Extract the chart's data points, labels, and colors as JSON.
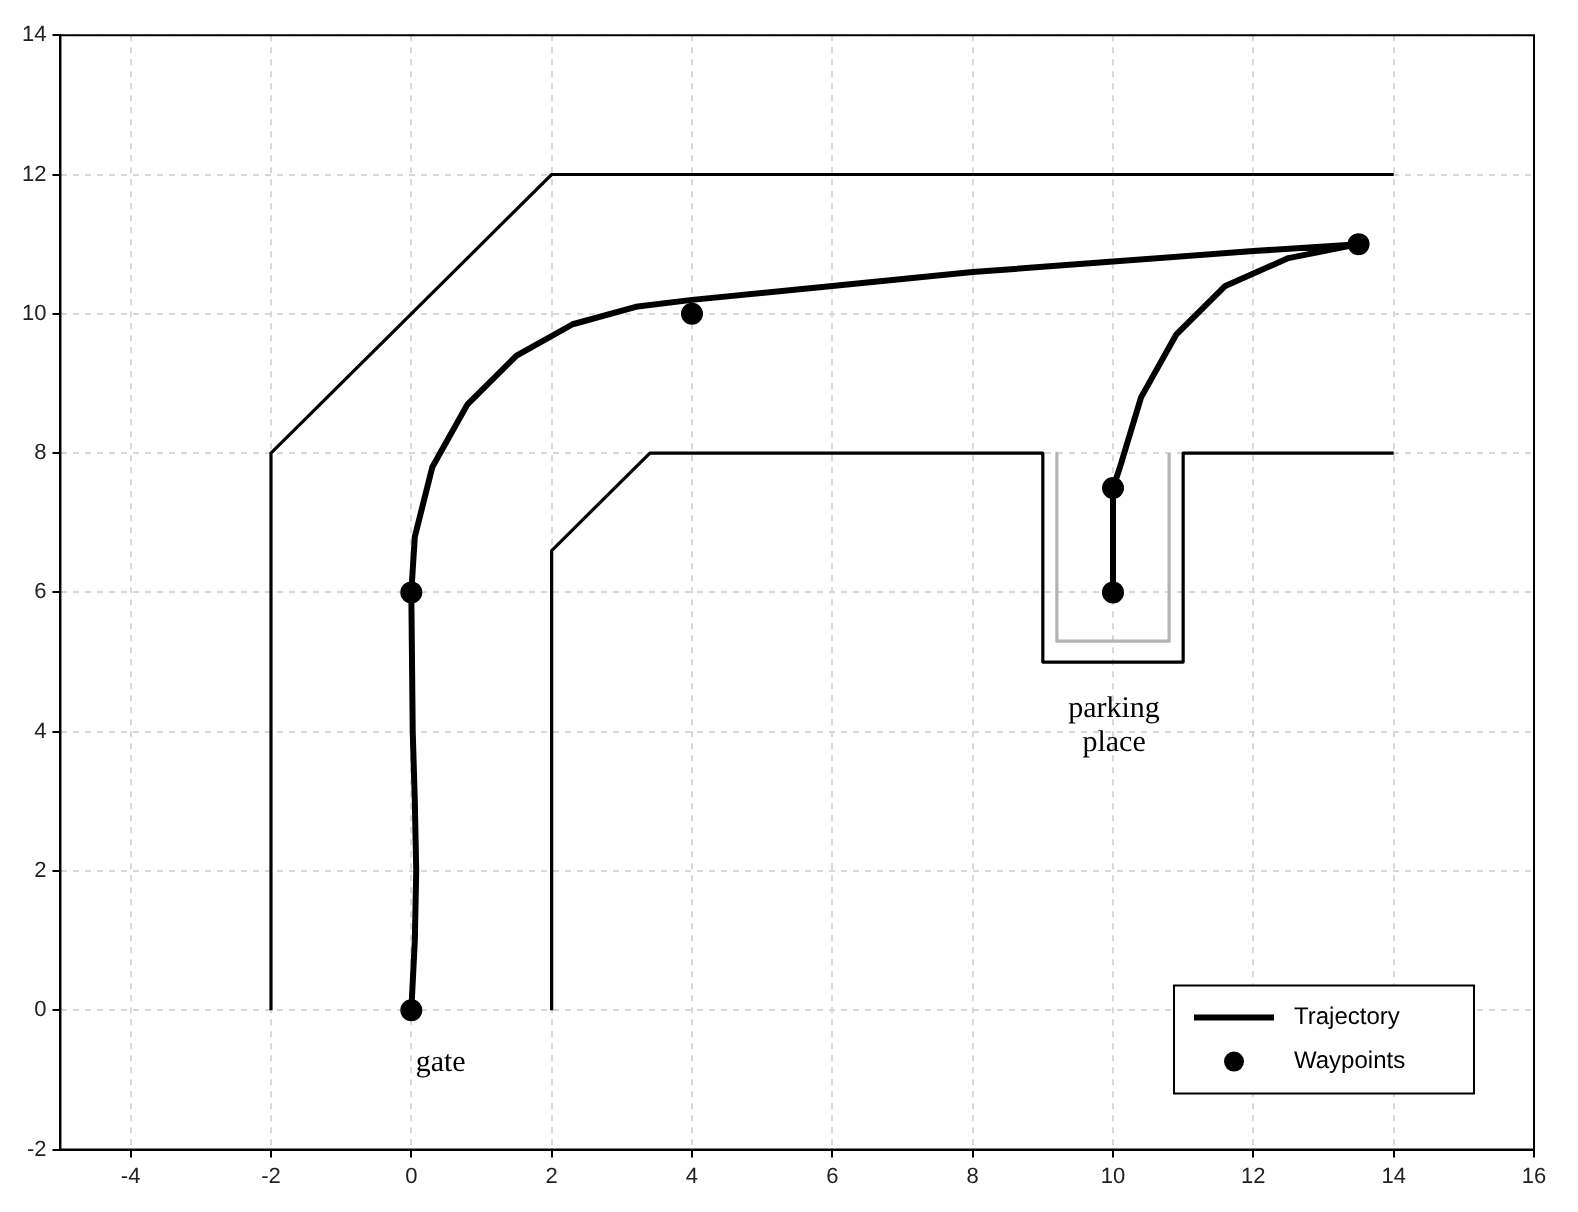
{
  "chart_data": {
    "type": "line",
    "xlim": [
      -5,
      16
    ],
    "ylim": [
      -2,
      14
    ],
    "xticks": [
      -4,
      -2,
      0,
      2,
      4,
      6,
      8,
      10,
      12,
      14,
      16
    ],
    "yticks": [
      -2,
      0,
      2,
      4,
      6,
      8,
      10,
      12,
      14
    ],
    "grid": true,
    "legend": "bottom right",
    "series": [
      {
        "color": "#000000",
        "x": [
          -2,
          -2,
          2,
          14
        ],
        "values": [
          0,
          8,
          12,
          12
        ]
      },
      {
        "color": "#000000",
        "x": [
          2,
          2,
          3.4,
          9,
          9,
          11,
          11,
          14
        ],
        "values": [
          0,
          6.6,
          8,
          8,
          5,
          5,
          8,
          8
        ]
      },
      {
        "color": "#b4b4b4",
        "x": [
          9.2,
          9.2,
          10.8,
          10.8
        ],
        "values": [
          8,
          5.3,
          5.3,
          8
        ]
      },
      {
        "name": "Trajectory",
        "color": "#000000",
        "line_style": "solid",
        "marker": "none",
        "x": [
          0,
          0.05,
          0.07,
          0.05,
          0.02,
          0,
          0.05,
          0.3,
          0.8,
          1.5,
          2.3,
          3.2,
          4,
          6,
          8,
          10,
          12,
          13.5,
          12.5,
          11.6,
          10.9,
          10.4,
          10.1,
          10,
          10
        ],
        "values": [
          0,
          1,
          2,
          3,
          4,
          6,
          6.8,
          7.8,
          8.7,
          9.4,
          9.85,
          10.1,
          10.2,
          10.4,
          10.6,
          10.75,
          10.9,
          11,
          10.8,
          10.4,
          9.7,
          8.8,
          7.8,
          7.5,
          6
        ]
      },
      {
        "type": "scatter",
        "name": "Waypoints",
        "color": "#000000",
        "marker": "circle",
        "x": [
          0,
          0,
          4,
          13.5,
          10,
          10
        ],
        "values": [
          0,
          6,
          10,
          11,
          7.5,
          6
        ]
      }
    ],
    "annotations": [
      "gate",
      "parking place"
    ]
  }
}
